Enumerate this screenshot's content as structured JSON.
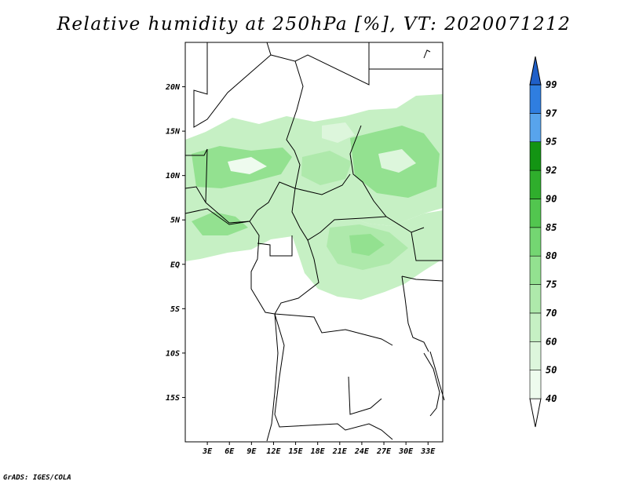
{
  "title": "Relative humidity at 250hPa [%], VT: 2020071212",
  "credit": "GrADS: IGES/COLA",
  "map": {
    "type": "map",
    "variable": "Relative humidity",
    "level": "250hPa",
    "units": "%",
    "valid_time": "2020071212",
    "lon_range": [
      0,
      35
    ],
    "lat_range": [
      -20,
      25
    ],
    "lat_ticks": [
      {
        "value": 20,
        "label": "20N"
      },
      {
        "value": 15,
        "label": "15N"
      },
      {
        "value": 10,
        "label": "10N"
      },
      {
        "value": 5,
        "label": "5N"
      },
      {
        "value": 0,
        "label": "EQ"
      },
      {
        "value": -5,
        "label": "5S"
      },
      {
        "value": -10,
        "label": "10S"
      },
      {
        "value": -15,
        "label": "15S"
      }
    ],
    "lon_ticks": [
      {
        "value": 3,
        "label": "3E"
      },
      {
        "value": 6,
        "label": "6E"
      },
      {
        "value": 9,
        "label": "9E"
      },
      {
        "value": 12,
        "label": "12E"
      },
      {
        "value": 15,
        "label": "15E"
      },
      {
        "value": 18,
        "label": "18E"
      },
      {
        "value": 21,
        "label": "21E"
      },
      {
        "value": 24,
        "label": "24E"
      },
      {
        "value": 27,
        "label": "27E"
      },
      {
        "value": 30,
        "label": "30E"
      },
      {
        "value": 33,
        "label": "33E"
      }
    ]
  },
  "colorbar": {
    "levels": [
      {
        "label": "40",
        "color": "#eefbee"
      },
      {
        "label": "50",
        "color": "#ddf6dc"
      },
      {
        "label": "60",
        "color": "#c6f0c4"
      },
      {
        "label": "70",
        "color": "#aee9ab"
      },
      {
        "label": "75",
        "color": "#93e190"
      },
      {
        "label": "80",
        "color": "#74d672"
      },
      {
        "label": "85",
        "color": "#52c64f"
      },
      {
        "label": "90",
        "color": "#2fae2c"
      },
      {
        "label": "92",
        "color": "#139413"
      },
      {
        "label": "95",
        "color": "#58a4ec"
      },
      {
        "label": "97",
        "color": "#2f7ee0"
      },
      {
        "label": "99",
        "color": "#1f5fc8"
      }
    ],
    "below_color": "#ffffff",
    "above_color": "#1f5fc8"
  }
}
